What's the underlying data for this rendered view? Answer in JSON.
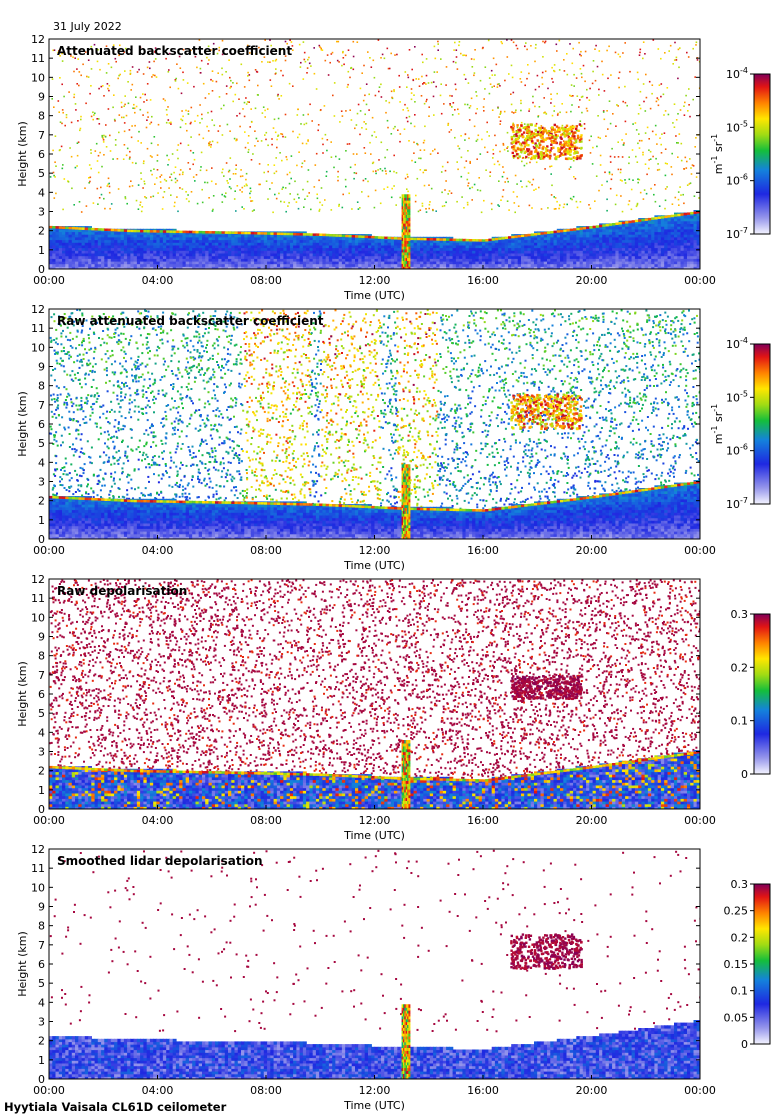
{
  "header": {
    "date": "31 July 2022"
  },
  "footer": {
    "source": "Hyytiala Vaisala CL61D ceilometer"
  },
  "chart_data": [
    {
      "type": "heatmap",
      "title": "Attenuated backscatter coefficient",
      "xlabel": "Time (UTC)",
      "ylabel": "Height (km)",
      "xticks": [
        "00:00",
        "04:00",
        "08:00",
        "12:00",
        "16:00",
        "20:00",
        "00:00"
      ],
      "xlim_hours": [
        0,
        24
      ],
      "yticks": [
        0,
        1,
        2,
        3,
        4,
        5,
        6,
        7,
        8,
        9,
        10,
        11,
        12
      ],
      "ylim": [
        0,
        12
      ],
      "scale": "log",
      "colorbar": {
        "ticks": [
          "10-7",
          "10-6",
          "10-5",
          "10-4"
        ],
        "values": [
          1e-07,
          1e-06,
          1e-05,
          0.0001
        ],
        "unit": "m-1 sr-1"
      },
      "background": "white",
      "noise_top_km": 12,
      "features": [
        {
          "kind": "boundary_layer",
          "top_km_at_hours": [
            [
              0,
              2.2
            ],
            [
              3,
              2.0
            ],
            [
              7,
              1.9
            ],
            [
              10,
              1.8
            ],
            [
              13,
              1.6
            ],
            [
              16,
              1.5
            ],
            [
              20,
              2.2
            ],
            [
              24,
              3.0
            ]
          ]
        },
        {
          "kind": "cloud",
          "hours": [
            17,
            19.6
          ],
          "km": [
            5.8,
            7.6
          ]
        },
        {
          "kind": "rain_column",
          "hours": [
            13.0,
            13.3
          ],
          "km": [
            0,
            3.8
          ]
        }
      ]
    },
    {
      "type": "heatmap",
      "title": "Raw attenuated backscatter coefficient",
      "xlabel": "Time (UTC)",
      "ylabel": "Height (km)",
      "xticks": [
        "00:00",
        "04:00",
        "08:00",
        "12:00",
        "16:00",
        "20:00",
        "00:00"
      ],
      "xlim_hours": [
        0,
        24
      ],
      "yticks": [
        0,
        1,
        2,
        3,
        4,
        5,
        6,
        7,
        8,
        9,
        10,
        11,
        12
      ],
      "ylim": [
        0,
        12
      ],
      "scale": "log",
      "colorbar": {
        "ticks": [
          "10-7",
          "10-6",
          "10-5",
          "10-4"
        ],
        "values": [
          1e-07,
          1e-06,
          1e-05,
          0.0001
        ],
        "unit": "m-1 sr-1"
      },
      "background": "noise",
      "features": [
        {
          "kind": "boundary_layer",
          "top_km_at_hours": [
            [
              0,
              2.2
            ],
            [
              3,
              2.0
            ],
            [
              7,
              1.9
            ],
            [
              10,
              1.8
            ],
            [
              13,
              1.6
            ],
            [
              16,
              1.5
            ],
            [
              20,
              2.2
            ],
            [
              24,
              3.0
            ]
          ]
        },
        {
          "kind": "cloud",
          "hours": [
            17,
            19.6
          ],
          "km": [
            5.8,
            7.6
          ]
        },
        {
          "kind": "rain_column",
          "hours": [
            13.0,
            13.3
          ],
          "km": [
            0,
            3.8
          ]
        },
        {
          "kind": "noisy_band",
          "hours": [
            7.1,
            9.6
          ]
        },
        {
          "kind": "noisy_band",
          "hours": [
            10.0,
            12.2
          ]
        },
        {
          "kind": "noisy_band",
          "hours": [
            12.8,
            14.3
          ]
        }
      ]
    },
    {
      "type": "heatmap",
      "title": "Raw depolarisation",
      "xlabel": "Time (UTC)",
      "ylabel": "Height (km)",
      "xticks": [
        "00:00",
        "04:00",
        "08:00",
        "12:00",
        "16:00",
        "20:00",
        "00:00"
      ],
      "xlim_hours": [
        0,
        24
      ],
      "yticks": [
        0,
        1,
        2,
        3,
        4,
        5,
        6,
        7,
        8,
        9,
        10,
        11,
        12
      ],
      "ylim": [
        0,
        12
      ],
      "scale": "linear",
      "colorbar": {
        "ticks": [
          "0",
          "0.1",
          "0.2",
          "0.3"
        ],
        "values": [
          0,
          0.1,
          0.2,
          0.3
        ],
        "unit": ""
      },
      "background": "purple_noise",
      "features": [
        {
          "kind": "boundary_layer",
          "top_km_at_hours": [
            [
              0,
              2.2
            ],
            [
              3,
              2.0
            ],
            [
              7,
              1.9
            ],
            [
              10,
              1.8
            ],
            [
              13,
              1.6
            ],
            [
              16,
              1.5
            ],
            [
              20,
              2.2
            ],
            [
              24,
              3.0
            ]
          ]
        },
        {
          "kind": "cloud",
          "hours": [
            17,
            19.6
          ],
          "km": [
            5.8,
            7.0
          ]
        },
        {
          "kind": "rain_column",
          "hours": [
            13.0,
            13.3
          ],
          "km": [
            0,
            3.5
          ]
        }
      ]
    },
    {
      "type": "heatmap",
      "title": "Smoothed lidar depolarisation",
      "xlabel": "Time (UTC)",
      "ylabel": "Height (km)",
      "xticks": [
        "00:00",
        "04:00",
        "08:00",
        "12:00",
        "16:00",
        "20:00",
        "00:00"
      ],
      "xlim_hours": [
        0,
        24
      ],
      "yticks": [
        0,
        1,
        2,
        3,
        4,
        5,
        6,
        7,
        8,
        9,
        10,
        11,
        12
      ],
      "ylim": [
        0,
        12
      ],
      "scale": "linear",
      "colorbar": {
        "ticks": [
          "0",
          "0.05",
          "0.1",
          "0.15",
          "0.2",
          "0.25",
          "0.3"
        ],
        "values": [
          0,
          0.05,
          0.1,
          0.15,
          0.2,
          0.25,
          0.3
        ],
        "unit": ""
      },
      "background": "sparse_purple",
      "features": [
        {
          "kind": "boundary_layer",
          "top_km_at_hours": [
            [
              0,
              2.2
            ],
            [
              3,
              2.0
            ],
            [
              7,
              1.9
            ],
            [
              10,
              1.8
            ],
            [
              13,
              1.6
            ],
            [
              16,
              1.5
            ],
            [
              20,
              2.2
            ],
            [
              24,
              3.0
            ]
          ]
        },
        {
          "kind": "cloud",
          "hours": [
            17,
            19.6
          ],
          "km": [
            5.8,
            7.6
          ]
        },
        {
          "kind": "rain_column",
          "hours": [
            13.0,
            13.3
          ],
          "km": [
            0,
            3.8
          ]
        }
      ]
    }
  ]
}
